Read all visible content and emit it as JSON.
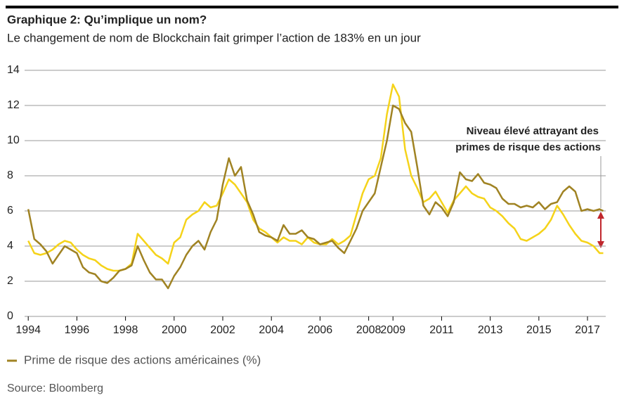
{
  "chart_data": {
    "type": "line",
    "title": "Graphique 2: Qu’implique un nom?",
    "subtitle": "Le changement de nom de Blockchain fait grimper l’action de 183% en un jour",
    "annotation": [
      "Niveau élevé attrayant des",
      "primes de risque des actions"
    ],
    "source": "Source: Bloomberg",
    "x": [
      1994.0,
      1994.25,
      1994.5,
      1994.75,
      1995.0,
      1995.25,
      1995.5,
      1995.75,
      1996.0,
      1996.25,
      1996.5,
      1996.75,
      1997.0,
      1997.25,
      1997.5,
      1997.75,
      1998.0,
      1998.25,
      1998.5,
      1998.75,
      1999.0,
      1999.25,
      1999.5,
      1999.75,
      2000.0,
      2000.25,
      2000.5,
      2000.75,
      2001.0,
      2001.25,
      2001.5,
      2001.75,
      2002.0,
      2002.25,
      2002.5,
      2002.75,
      2003.0,
      2003.25,
      2003.5,
      2003.75,
      2004.0,
      2004.25,
      2004.5,
      2004.75,
      2005.0,
      2005.25,
      2005.5,
      2005.75,
      2006.0,
      2006.25,
      2006.5,
      2006.75,
      2007.0,
      2007.25,
      2007.5,
      2007.75,
      2008.0,
      2008.25,
      2008.5,
      2008.75,
      2009.0,
      2009.25,
      2009.5,
      2009.75,
      2010.0,
      2010.25,
      2010.5,
      2010.75,
      2011.0,
      2011.25,
      2011.5,
      2011.75,
      2012.0,
      2012.25,
      2012.5,
      2012.75,
      2013.0,
      2013.25,
      2013.5,
      2013.75,
      2014.0,
      2014.25,
      2014.5,
      2014.75,
      2015.0,
      2015.25,
      2015.5,
      2015.75,
      2016.0,
      2016.25,
      2016.5,
      2016.75,
      2017.0,
      2017.25,
      2017.5,
      2017.65
    ],
    "series": [
      {
        "color": "#f5d31a",
        "values": [
          4.3,
          3.6,
          3.5,
          3.6,
          3.8,
          4.1,
          4.3,
          4.2,
          3.8,
          3.5,
          3.3,
          3.2,
          2.9,
          2.7,
          2.6,
          2.6,
          2.7,
          3.0,
          4.7,
          4.3,
          3.9,
          3.5,
          3.3,
          3.0,
          4.2,
          4.5,
          5.5,
          5.8,
          6.0,
          6.5,
          6.2,
          6.3,
          7.0,
          7.8,
          7.5,
          7.0,
          6.5,
          5.5,
          5.0,
          4.8,
          4.5,
          4.2,
          4.5,
          4.3,
          4.3,
          4.1,
          4.5,
          4.2,
          4.1,
          4.1,
          4.4,
          4.1,
          4.3,
          4.6,
          5.8,
          7.0,
          7.8,
          8.0,
          9.0,
          11.5,
          13.2,
          12.5,
          9.5,
          8.0,
          7.3,
          6.5,
          6.7,
          7.1,
          6.5,
          5.9,
          6.6,
          7.0,
          7.4,
          7.0,
          6.8,
          6.7,
          6.2,
          6.0,
          5.7,
          5.3,
          5.0,
          4.4,
          4.3,
          4.5,
          4.7,
          5.0,
          5.5,
          6.3,
          5.8,
          5.2,
          4.7,
          4.3,
          4.2,
          4.0,
          3.6,
          3.6
        ]
      },
      {
        "name": "Prime de risque des actions américaines (%)",
        "color": "#a08323",
        "values": [
          6.1,
          4.4,
          4.1,
          3.7,
          3.0,
          3.5,
          4.0,
          3.8,
          3.6,
          2.8,
          2.5,
          2.4,
          2.0,
          1.9,
          2.2,
          2.6,
          2.7,
          2.9,
          4.0,
          3.2,
          2.5,
          2.1,
          2.1,
          1.6,
          2.3,
          2.8,
          3.5,
          4.0,
          4.3,
          3.8,
          4.8,
          5.5,
          7.5,
          9.0,
          8.0,
          8.5,
          6.6,
          5.8,
          4.8,
          4.6,
          4.5,
          4.3,
          5.2,
          4.7,
          4.7,
          4.9,
          4.5,
          4.4,
          4.1,
          4.2,
          4.3,
          3.9,
          3.6,
          4.3,
          5.0,
          6.0,
          6.5,
          7.0,
          8.5,
          10.0,
          12.0,
          11.8,
          11.0,
          10.5,
          8.5,
          6.3,
          5.8,
          6.5,
          6.2,
          5.7,
          6.5,
          8.2,
          7.8,
          7.7,
          8.1,
          7.6,
          7.5,
          7.3,
          6.7,
          6.4,
          6.4,
          6.2,
          6.3,
          6.2,
          6.5,
          6.1,
          6.4,
          6.5,
          7.1,
          7.4,
          7.1,
          6.0,
          6.1,
          6.0,
          6.1,
          6.0
        ]
      }
    ],
    "xlim": [
      1993.85,
      2017.75
    ],
    "xticks": [
      1994,
      1996,
      1998,
      2000,
      2002,
      2004,
      2006,
      2008,
      2009,
      2011,
      2013,
      2015,
      2017
    ],
    "ylim": [
      0,
      14
    ],
    "yticks": [
      0,
      2,
      4,
      6,
      8,
      10,
      12,
      14
    ],
    "grid": true
  }
}
